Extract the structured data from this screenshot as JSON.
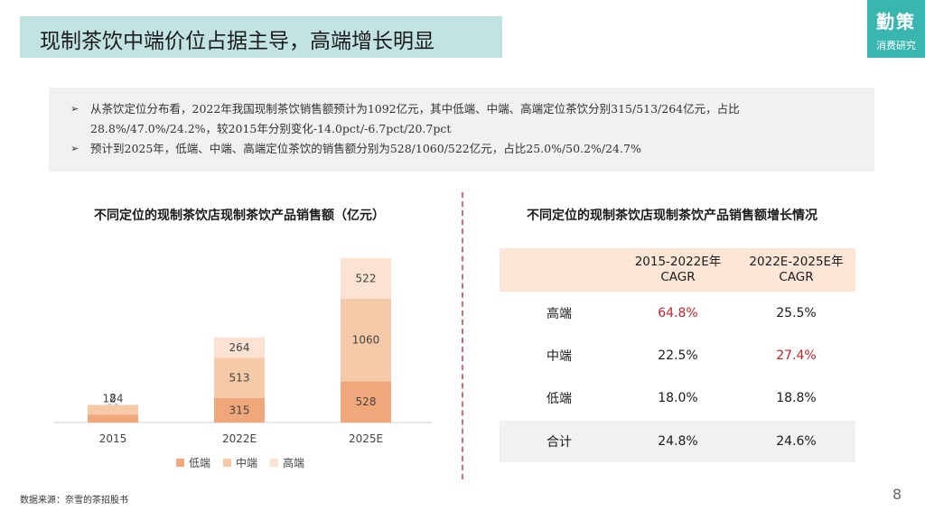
{
  "header": {
    "title": "现制茶饮中端价位占据主导，高端增长明显",
    "logo_main": "勤策",
    "logo_sub": "消费研究"
  },
  "summary": {
    "bullet_icon": "arrow-right-icon",
    "bullets": [
      "从茶饮定位分布看，2022年我国现制茶饮销售额预计为1092亿元，其中低端、中端、高端定位茶饮分别315/513/264亿元，占比28.8%/47.0%/24.2%，较2015年分别变化-14.0pct/-6.7pct/20.7pct",
      "预计到2025年，低端、中端、高端定位茶饮的销售额分别为528/1060/522亿元，占比25.0%/50.2%/24.7%"
    ]
  },
  "colors": {
    "title_bg": "#c1e4e3",
    "logo_bg": "#39b6b0",
    "low": "#f0a77b",
    "mid": "#f6c9a8",
    "high": "#fbe2d3",
    "highlight": "#c4202b",
    "divider": "#d36b6b"
  },
  "chart_data": {
    "type": "bar",
    "stacked": true,
    "title": "不同定位的现制茶饮店现制茶饮产品销售额（亿元）",
    "categories": [
      "2015",
      "2022E",
      "2025E"
    ],
    "series": [
      {
        "name": "低端",
        "values": [
          99,
          315,
          528
        ],
        "color": "#f0a77b"
      },
      {
        "name": "中端",
        "values": [
          124,
          513,
          1060
        ],
        "color": "#f6c9a8"
      },
      {
        "name": "高端",
        "values": [
          8,
          264,
          522
        ],
        "color": "#fbe2d3"
      }
    ],
    "ylim": [
      0,
      2200
    ],
    "legend": "bottom",
    "grid": false,
    "xlabel": "",
    "ylabel": ""
  },
  "cagr_table": {
    "title": "不同定位的现制茶饮店现制茶饮产品销售额增长情况",
    "headers": [
      "",
      "2015-2022E年\nCAGR",
      "2022E-2025E年\nCAGR"
    ],
    "rows": [
      {
        "label": "高端",
        "v1": "64.8%",
        "v2": "25.5%"
      },
      {
        "label": "中端",
        "v1": "22.5%",
        "v2": "27.4%"
      },
      {
        "label": "低端",
        "v1": "18.0%",
        "v2": "18.8%"
      },
      {
        "label": "合计",
        "v1": "24.8%",
        "v2": "24.6%"
      }
    ]
  },
  "footer": {
    "source": "数据来源：奈雪的茶招股书",
    "page": "8"
  }
}
